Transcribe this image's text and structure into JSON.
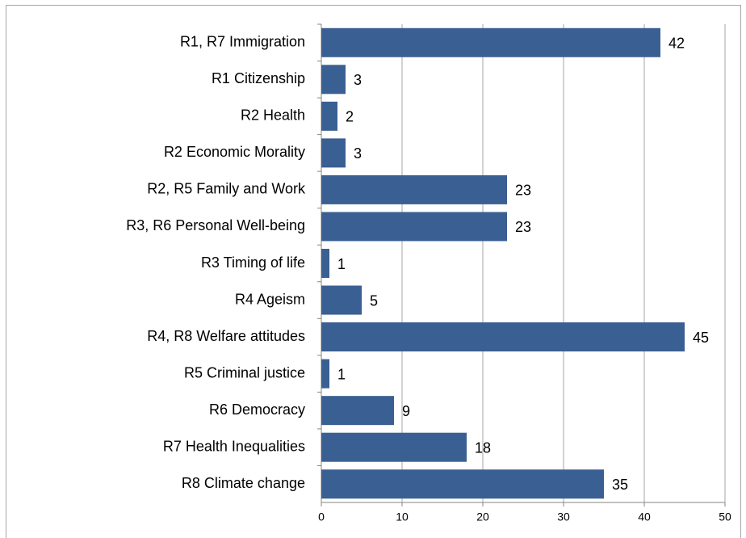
{
  "chart_data": {
    "type": "bar",
    "orientation": "horizontal",
    "categories": [
      "R1, R7 Immigration",
      "R1 Citizenship",
      "R2 Health",
      "R2 Economic Morality",
      "R2, R5 Family and Work",
      "R3, R6 Personal Well-being",
      "R3 Timing of life",
      "R4 Ageism",
      "R4, R8 Welfare attitudes",
      "R5 Criminal justice",
      "R6 Democracy",
      "R7 Health Inequalities",
      "R8 Climate change"
    ],
    "values": [
      42,
      3,
      2,
      3,
      23,
      23,
      1,
      5,
      45,
      1,
      9,
      18,
      35
    ],
    "color": "#3a5f92",
    "xlim": [
      0,
      50
    ],
    "xticks": [
      0,
      10,
      20,
      30,
      40,
      50
    ],
    "grid": true
  }
}
